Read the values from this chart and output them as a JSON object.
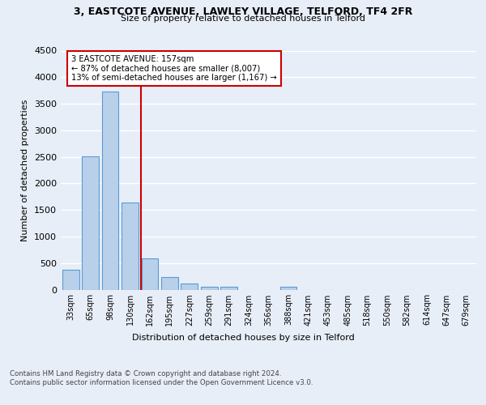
{
  "title1": "3, EASTCOTE AVENUE, LAWLEY VILLAGE, TELFORD, TF4 2FR",
  "title2": "Size of property relative to detached houses in Telford",
  "xlabel": "Distribution of detached houses by size in Telford",
  "ylabel": "Number of detached properties",
  "bar_labels": [
    "33sqm",
    "65sqm",
    "98sqm",
    "130sqm",
    "162sqm",
    "195sqm",
    "227sqm",
    "259sqm",
    "291sqm",
    "324sqm",
    "356sqm",
    "388sqm",
    "421sqm",
    "453sqm",
    "485sqm",
    "518sqm",
    "550sqm",
    "582sqm",
    "614sqm",
    "647sqm",
    "679sqm"
  ],
  "bar_values": [
    370,
    2510,
    3730,
    1640,
    590,
    240,
    110,
    60,
    50,
    0,
    0,
    60,
    0,
    0,
    0,
    0,
    0,
    0,
    0,
    0,
    0
  ],
  "bar_color": "#b8d0ea",
  "bar_edge_color": "#5b9bd5",
  "vline_color": "#cc0000",
  "annotation_text": "3 EASTCOTE AVENUE: 157sqm\n← 87% of detached houses are smaller (8,007)\n13% of semi-detached houses are larger (1,167) →",
  "annotation_box_color": "#ffffff",
  "annotation_box_edge": "#cc0000",
  "ylim": [
    0,
    4500
  ],
  "yticks": [
    0,
    500,
    1000,
    1500,
    2000,
    2500,
    3000,
    3500,
    4000,
    4500
  ],
  "footnote": "Contains HM Land Registry data © Crown copyright and database right 2024.\nContains public sector information licensed under the Open Government Licence v3.0.",
  "bg_color": "#e8eef8",
  "grid_color": "#ffffff"
}
